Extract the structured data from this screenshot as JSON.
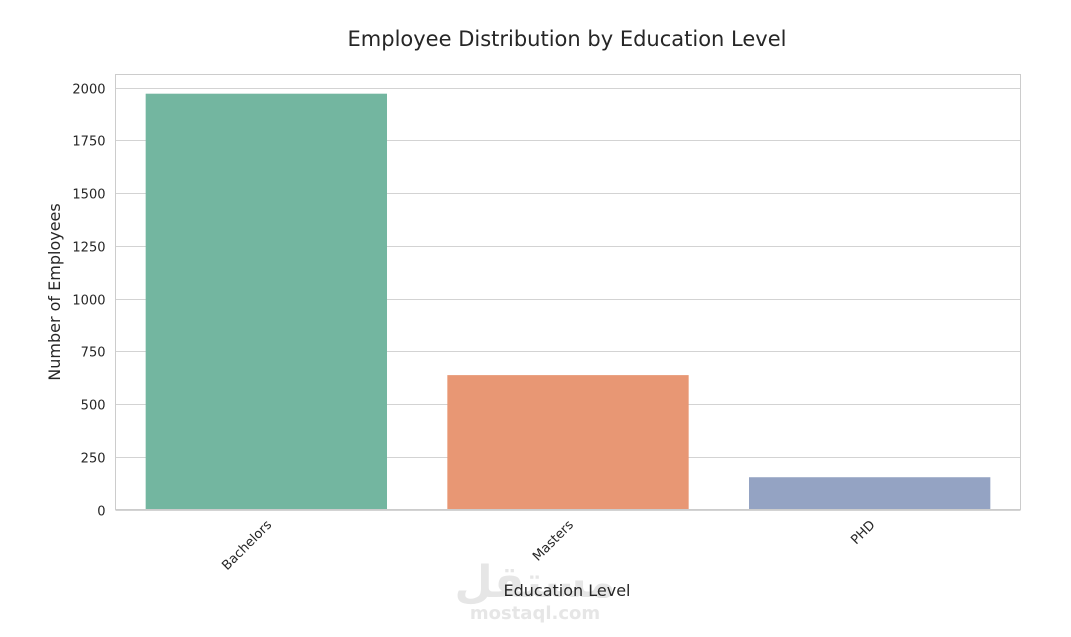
{
  "chart_data": {
    "type": "bar",
    "title": "Employee Distribution by Education Level",
    "xlabel": "Education Level",
    "ylabel": "Number of Employees",
    "categories": [
      "Bachelors",
      "Masters",
      "PHD"
    ],
    "values": [
      1971,
      637,
      153
    ],
    "colors": [
      "#73b6a0",
      "#e89774",
      "#94a3c3"
    ],
    "ylim": [
      0,
      2062
    ],
    "yticks": [
      0,
      250,
      500,
      750,
      1000,
      1250,
      1500,
      1750,
      2000
    ],
    "grid": true,
    "gridColor": "#d3d3d3",
    "frameColor": "#cccccc"
  },
  "watermark": {
    "arabic": "مستقل",
    "latin": "mostaql.com"
  }
}
